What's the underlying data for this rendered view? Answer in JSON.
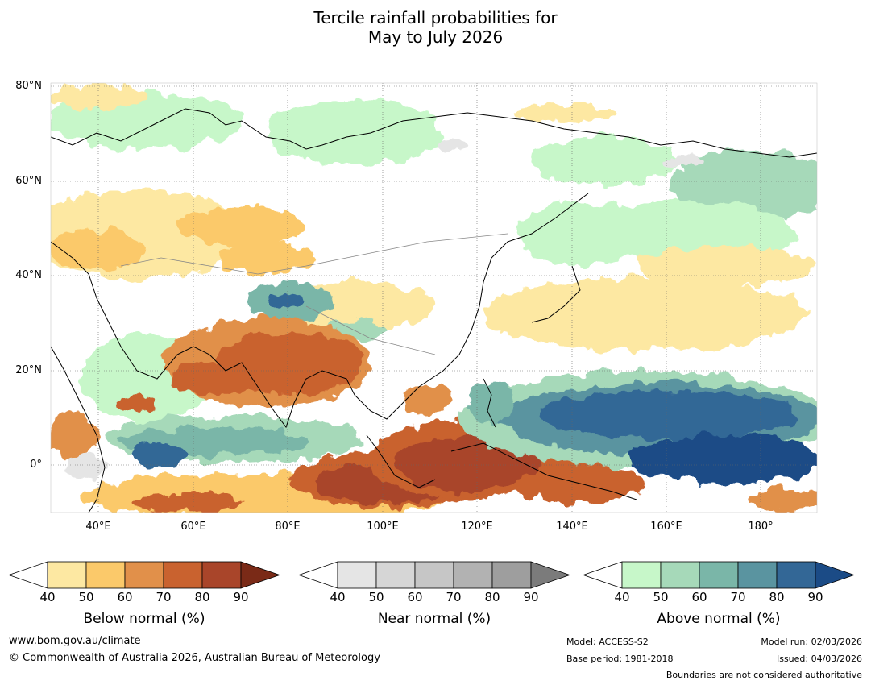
{
  "title": {
    "line1": "Tercile rainfall probabilities for",
    "line2": "May to July 2026"
  },
  "map": {
    "lat_labels": [
      "80°N",
      "60°N",
      "40°N",
      "20°N",
      "0°"
    ],
    "lon_labels": [
      "40°E",
      "60°E",
      "80°E",
      "100°E",
      "120°E",
      "140°E",
      "160°E",
      "180°"
    ]
  },
  "colors": {
    "below": [
      "#ffffff",
      "#fde8a2",
      "#fbc96a",
      "#e1904a",
      "#c9622f",
      "#a9452a",
      "#7a2a17"
    ],
    "near": [
      "#ffffff",
      "#e5e5e5",
      "#d6d6d6",
      "#c6c6c6",
      "#b2b2b2",
      "#9e9e9e",
      "#7b7b7b"
    ],
    "above": [
      "#ffffff",
      "#c7f7c9",
      "#a6d9b9",
      "#7ab6a8",
      "#5a94a0",
      "#336796",
      "#1b4b86"
    ]
  },
  "colorbars": [
    {
      "key": "below",
      "ticks": [
        "40",
        "50",
        "60",
        "70",
        "80",
        "90"
      ],
      "label": "Below normal (%)"
    },
    {
      "key": "near",
      "ticks": [
        "40",
        "50",
        "60",
        "70",
        "80",
        "90"
      ],
      "label": "Near normal (%)"
    },
    {
      "key": "above",
      "ticks": [
        "40",
        "50",
        "60",
        "70",
        "80",
        "90"
      ],
      "label": "Above normal (%)"
    }
  ],
  "footer": {
    "url": "www.bom.gov.au/climate",
    "copyright": "© Commonwealth of Australia 2026, Australian Bureau of Meteorology",
    "model": "Model: ACCESS-S2",
    "base_period": "Base period: 1981-2018",
    "model_run": "Model run: 02/03/2026",
    "issued": "Issued: 04/03/2026",
    "disclaimer": "Boundaries are not considered authoritative"
  }
}
